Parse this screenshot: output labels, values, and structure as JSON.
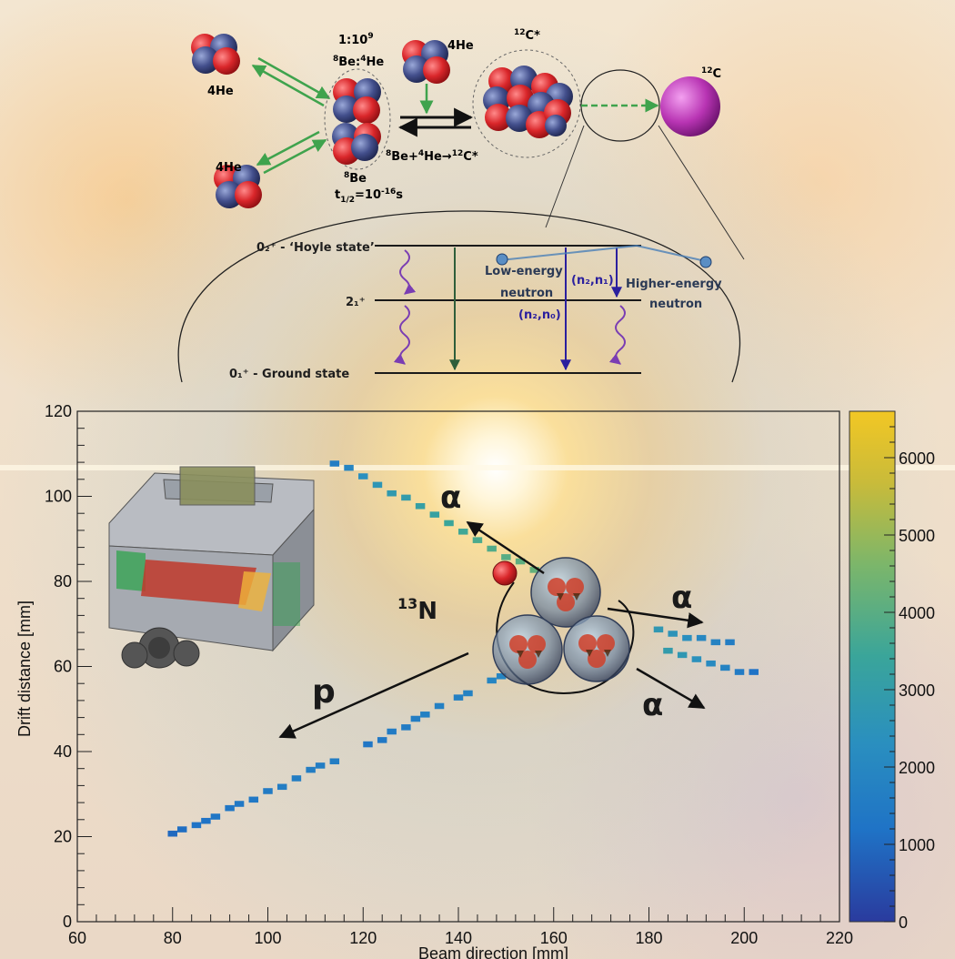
{
  "diagram": {
    "he4_labels": [
      "4He",
      "4He",
      "4He"
    ],
    "ratio": "1:10",
    "ratio_exp": "9",
    "be_ratio_a": "8",
    "be_ratio_b": "Be:",
    "be_ratio_c": "4",
    "be_ratio_d": "He",
    "be8_sup": "8",
    "be8": "Be",
    "halflife_t": "t",
    "halflife_sub": "1/2",
    "halflife_eq": "=10",
    "halflife_exp": "-16",
    "halflife_unit": "s",
    "c12_star_sup": "12",
    "c12_star": "C*",
    "c12_sup": "12",
    "c12": "C",
    "reaction_a": "8",
    "reaction_b": "Be+",
    "reaction_c": "4",
    "reaction_d": "He",
    "reaction_arrow": "→",
    "reaction_e": "12",
    "reaction_f": "C*"
  },
  "levels": {
    "hoyle": "0₂⁺ - ‘Hoyle state’",
    "first": "2₁⁺",
    "ground": "0₁⁺ - Ground state",
    "low_energy": "Low-energy",
    "neutron1": "neutron",
    "n2n1": "(n₂,n₁)",
    "high_energy": "Higher-energy",
    "neutron2": "neutron",
    "n2n0": "(n₂,n₀)"
  },
  "annotations": {
    "alpha": "α",
    "n13_sup": "13",
    "n13": "N",
    "proton": "p"
  },
  "colorbar": {
    "ticks": [
      "0",
      "1000",
      "2000",
      "3000",
      "4000",
      "5000",
      "6000"
    ],
    "colors": [
      "#2a3b9e",
      "#1f73c6",
      "#2a8fbf",
      "#3aa59a",
      "#7cb66a",
      "#c9bb3a",
      "#f2c724"
    ],
    "max": 6600
  },
  "chart_data": {
    "type": "heatmap",
    "xlabel": "Beam direction [mm]",
    "ylabel": "Drift distance [mm]",
    "xlim": [
      60,
      220
    ],
    "ylim": [
      0,
      120
    ],
    "x_ticks": [
      60,
      80,
      100,
      120,
      140,
      160,
      180,
      200,
      220
    ],
    "y_ticks": [
      0,
      20,
      40,
      60,
      80,
      100,
      120
    ],
    "tracks": [
      {
        "name": "p",
        "x": [
          79,
          81,
          84,
          86,
          88,
          91,
          93,
          96,
          99,
          102,
          105,
          108,
          110,
          113,
          120,
          123,
          125,
          128,
          130,
          132,
          135,
          139,
          141,
          146,
          148
        ],
        "y": [
          20,
          21,
          22,
          23,
          24,
          26,
          27,
          28,
          30,
          31,
          33,
          35,
          36,
          37,
          41,
          42,
          44,
          45,
          47,
          48,
          50,
          52,
          53,
          56,
          57
        ],
        "z": [
          900,
          1000,
          1100,
          1100,
          1200,
          1200,
          1300,
          1300,
          1400,
          1500,
          1500,
          1500,
          1500,
          1500,
          1200,
          1300,
          1400,
          1400,
          1500,
          1600,
          1600,
          1600,
          1700,
          1800,
          1800
        ]
      },
      {
        "name": "α-upper",
        "x": [
          113,
          116,
          119,
          122,
          125,
          128,
          131,
          134,
          137,
          140,
          143,
          146,
          149,
          152,
          155
        ],
        "y": [
          107,
          106,
          104,
          102,
          100,
          99,
          97,
          95,
          93,
          91,
          89,
          87,
          85,
          84,
          82
        ],
        "z": [
          1500,
          1800,
          2200,
          2500,
          2700,
          2800,
          3000,
          3100,
          3300,
          3400,
          3600,
          3700,
          3800,
          3900,
          4000
        ]
      },
      {
        "name": "α-right-1",
        "x": [
          181,
          184,
          187,
          190,
          193,
          196
        ],
        "y": [
          68,
          67,
          66,
          66,
          65,
          65
        ],
        "z": [
          2600,
          2400,
          2200,
          1900,
          1700,
          1500
        ]
      },
      {
        "name": "α-right-2",
        "x": [
          183,
          186,
          189,
          192,
          195,
          198,
          201
        ],
        "y": [
          63,
          62,
          61,
          60,
          59,
          58,
          58
        ],
        "z": [
          2800,
          2600,
          2300,
          2000,
          1700,
          1400,
          1100
        ]
      }
    ]
  }
}
